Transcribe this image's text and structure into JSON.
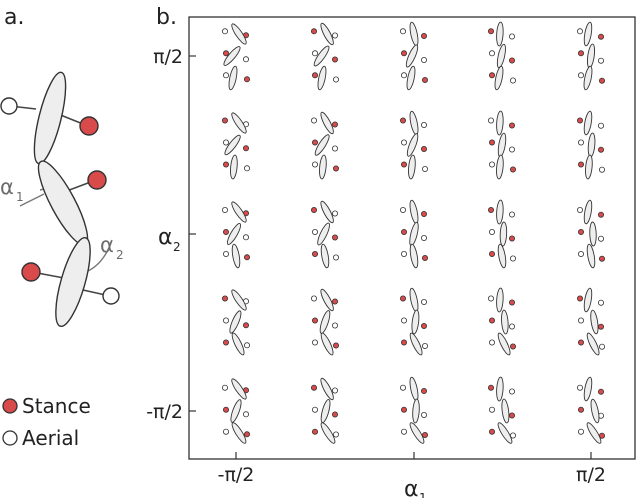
{
  "panel_a": {
    "label": "a.",
    "alpha1": "α",
    "alpha1_sub": "1",
    "alpha2": "α",
    "alpha2_sub": "2"
  },
  "legend": {
    "stance": "Stance",
    "aerial": "Aerial"
  },
  "panel_b": {
    "label": "b.",
    "xlabel": "α",
    "xlabel_sub": "1",
    "ylabel": "α",
    "ylabel_sub": "2",
    "x_ticks": [
      "-π/2",
      "π/2"
    ],
    "y_ticks": [
      "π/2",
      "-π/2"
    ],
    "grid": {
      "rows": 5,
      "cols": 5,
      "alpha1_range": [
        "-π/2",
        "π/2"
      ],
      "alpha2_range": [
        "π/2",
        "-π/2"
      ]
    }
  },
  "colors": {
    "stance": "#d94a4a",
    "aerial": "#ffffff",
    "body": "#eeeeee",
    "outline": "#333333"
  }
}
